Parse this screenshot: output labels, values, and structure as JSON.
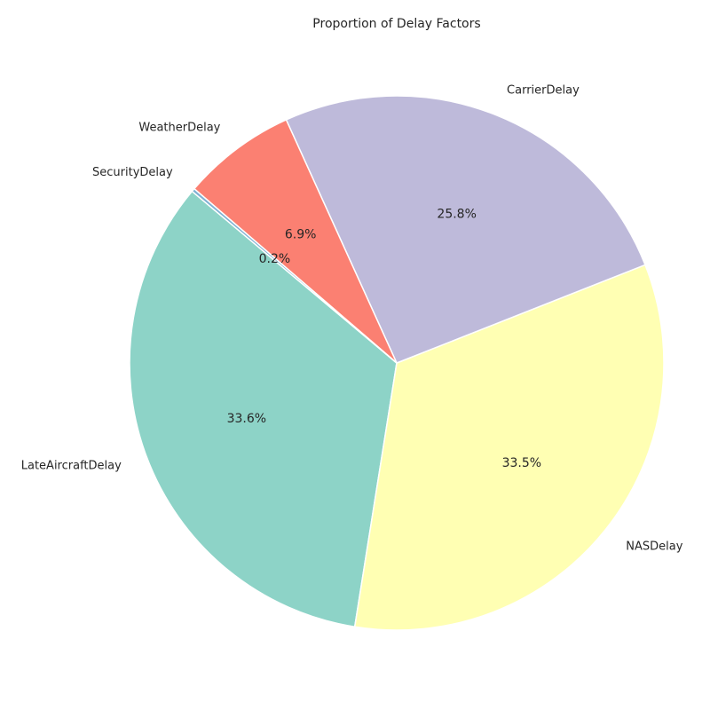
{
  "chart_data": {
    "type": "pie",
    "title": "Proportion of Delay Factors",
    "slices": [
      {
        "label": "LateAircraftDelay",
        "value": 33.6,
        "pct_label": "33.6%",
        "color": "#8dd3c7"
      },
      {
        "label": "NASDelay",
        "value": 33.5,
        "pct_label": "33.5%",
        "color": "#ffffb3"
      },
      {
        "label": "CarrierDelay",
        "value": 25.8,
        "pct_label": "25.8%",
        "color": "#bebada"
      },
      {
        "label": "WeatherDelay",
        "value": 6.9,
        "pct_label": "6.9%",
        "color": "#fb8072"
      },
      {
        "label": "SecurityDelay",
        "value": 0.2,
        "pct_label": "0.2%",
        "color": "#80b1d3"
      }
    ],
    "start_angle_deg": 140,
    "direction": "counterclockwise",
    "legend": "none"
  }
}
